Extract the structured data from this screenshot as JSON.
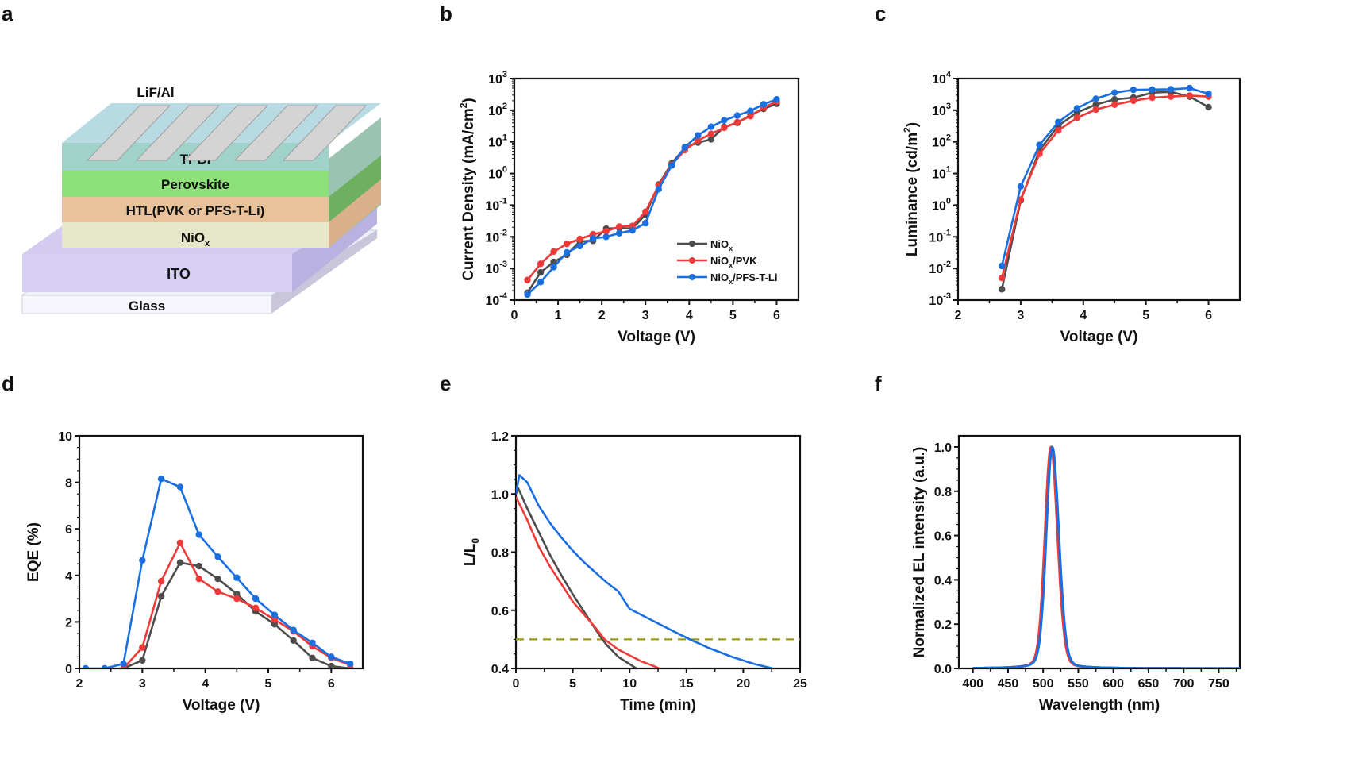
{
  "panel_letters": [
    "a",
    "b",
    "c",
    "d",
    "e",
    "f"
  ],
  "colors": {
    "NiOx": "#4d4d4d",
    "NiOx/PVK": "#f03a3a",
    "NiOx/PFS-T-Li": "#1a6fe0",
    "dashed": "#9a9a10"
  },
  "device_stack": {
    "electrode_label": "LiF/Al",
    "layers": [
      {
        "name": "TPBi",
        "color": "#9fd2c8"
      },
      {
        "name": "Perovskite",
        "color": "#8ee07a"
      },
      {
        "name": "HTL(PVK or PFS-T-Li)",
        "color": "#e8c29a"
      },
      {
        "name": "NiOx",
        "color": "#e6e6c8"
      },
      {
        "name": "ITO",
        "color": "#d8d0f2"
      },
      {
        "name": "Glass",
        "color": "#f4f4fb"
      }
    ]
  },
  "chart_data": [
    {
      "id": "b",
      "type": "line",
      "title": "",
      "xlabel": "Voltage (V)",
      "ylabel": "Current Density (mA/cm²)",
      "xlim": [
        0,
        6.5
      ],
      "ylim": [
        0.0001,
        1000
      ],
      "yscale": "log",
      "xticks": [
        0,
        1,
        2,
        3,
        4,
        5,
        6
      ],
      "yticks": [
        0.0001,
        0.001,
        0.01,
        0.1,
        1,
        10,
        100,
        1000
      ],
      "ytick_labels": [
        "10⁻⁴",
        "10⁻³",
        "10⁻²",
        "10⁻¹",
        "10⁰",
        "10¹",
        "10²",
        "10³"
      ],
      "legend_position": "bottom-right",
      "series": [
        {
          "name": "NiOx",
          "x": [
            0.3,
            0.6,
            0.9,
            1.2,
            1.5,
            1.8,
            2.1,
            2.4,
            2.7,
            3.0,
            3.3,
            3.6,
            3.9,
            4.2,
            4.5,
            4.8,
            5.1,
            5.4,
            5.7,
            6.0
          ],
          "y": [
            0.00017,
            0.00075,
            0.0016,
            0.0027,
            0.0072,
            0.0075,
            0.018,
            0.019,
            0.018,
            0.05,
            0.45,
            2.1,
            6.5,
            9.5,
            12,
            30,
            40,
            70,
            110,
            160
          ]
        },
        {
          "name": "NiOx/PVK",
          "x": [
            0.3,
            0.6,
            0.9,
            1.2,
            1.5,
            1.8,
            2.1,
            2.4,
            2.7,
            3.0,
            3.3,
            3.6,
            3.9,
            4.2,
            4.5,
            4.8,
            5.1,
            5.4,
            5.7,
            6.0
          ],
          "y": [
            0.00043,
            0.0014,
            0.0034,
            0.006,
            0.0085,
            0.012,
            0.015,
            0.021,
            0.022,
            0.062,
            0.42,
            1.9,
            5.5,
            11,
            18,
            28,
            42,
            65,
            120,
            190
          ]
        },
        {
          "name": "NiOx/PFS-T-Li",
          "x": [
            0.3,
            0.6,
            0.9,
            1.2,
            1.5,
            1.8,
            2.1,
            2.4,
            2.7,
            3.0,
            3.3,
            3.6,
            3.9,
            4.2,
            4.5,
            4.8,
            5.1,
            5.4,
            5.7,
            6.0
          ],
          "y": [
            0.00015,
            0.00037,
            0.0011,
            0.0032,
            0.0051,
            0.0088,
            0.01,
            0.013,
            0.016,
            0.027,
            0.32,
            1.8,
            6.8,
            16,
            30,
            48,
            68,
            95,
            155,
            220
          ]
        }
      ]
    },
    {
      "id": "c",
      "type": "line",
      "title": "",
      "xlabel": "Voltage (V)",
      "ylabel": "Luminance (cd/m²)",
      "xlim": [
        2,
        6.5
      ],
      "ylim": [
        0.001,
        10000
      ],
      "yscale": "log",
      "xticks": [
        2,
        3,
        4,
        5,
        6
      ],
      "yticks": [
        0.001,
        0.01,
        0.1,
        1,
        10,
        100,
        1000,
        10000
      ],
      "ytick_labels": [
        "10⁻³",
        "10⁻²",
        "10⁻¹",
        "10⁰",
        "10¹",
        "10²",
        "10³",
        "10⁴"
      ],
      "series": [
        {
          "name": "NiOx",
          "x": [
            2.7,
            3.0,
            3.3,
            3.6,
            3.9,
            4.2,
            4.5,
            4.8,
            5.1,
            5.4,
            5.7,
            6.0
          ],
          "y": [
            0.0022,
            1.4,
            55,
            320,
            850,
            1500,
            2200,
            2500,
            3600,
            3800,
            2700,
            1250
          ]
        },
        {
          "name": "NiOx/PVK",
          "x": [
            2.7,
            3.0,
            3.3,
            3.6,
            3.9,
            4.2,
            4.5,
            4.8,
            5.1,
            5.4,
            5.7,
            6.0
          ],
          "y": [
            0.005,
            1.5,
            42,
            230,
            580,
            1050,
            1500,
            2000,
            2500,
            2700,
            2900,
            2700
          ]
        },
        {
          "name": "NiOx/PFS-T-Li",
          "x": [
            2.7,
            3.0,
            3.3,
            3.6,
            3.9,
            4.2,
            4.5,
            4.8,
            5.1,
            5.4,
            5.7,
            6.0
          ],
          "y": [
            0.012,
            3.9,
            80,
            420,
            1150,
            2300,
            3600,
            4400,
            4500,
            4600,
            5000,
            3300
          ]
        }
      ]
    },
    {
      "id": "d",
      "type": "line",
      "title": "",
      "xlabel": "Voltage (V)",
      "ylabel": "EQE (%)",
      "xlim": [
        2,
        6.5
      ],
      "ylim": [
        0,
        10
      ],
      "xticks": [
        2,
        3,
        4,
        5,
        6
      ],
      "yticks": [
        0,
        2,
        4,
        6,
        8,
        10
      ],
      "series": [
        {
          "name": "NiOx",
          "x": [
            2.7,
            3.0,
            3.3,
            3.6,
            3.9,
            4.2,
            4.5,
            4.8,
            5.1,
            5.4,
            5.7,
            6.0,
            6.3
          ],
          "y": [
            0.0,
            0.35,
            3.1,
            4.55,
            4.4,
            3.85,
            3.2,
            2.45,
            1.9,
            1.2,
            0.45,
            0.1,
            0.0
          ]
        },
        {
          "name": "NiOx/PVK",
          "x": [
            2.7,
            3.0,
            3.3,
            3.6,
            3.9,
            4.2,
            4.5,
            4.8,
            5.1,
            5.4,
            5.7,
            6.0,
            6.3
          ],
          "y": [
            0.0,
            0.9,
            3.75,
            5.4,
            3.85,
            3.3,
            3.0,
            2.6,
            2.1,
            1.6,
            0.95,
            0.45,
            0.15
          ]
        },
        {
          "name": "NiOx/PFS-T-Li",
          "x": [
            2.1,
            2.4,
            2.7,
            3.0,
            3.3,
            3.6,
            3.9,
            4.2,
            4.5,
            4.8,
            5.1,
            5.4,
            5.7,
            6.0,
            6.3
          ],
          "y": [
            0.0,
            0.0,
            0.2,
            4.65,
            8.15,
            7.8,
            5.75,
            4.8,
            3.9,
            3.0,
            2.3,
            1.65,
            1.1,
            0.5,
            0.2
          ]
        }
      ]
    },
    {
      "id": "e",
      "type": "line",
      "title": "",
      "xlabel": "Time (min)",
      "ylabel": "L/L₀",
      "xlim": [
        0,
        25
      ],
      "ylim": [
        0.4,
        1.2
      ],
      "xticks": [
        0,
        5,
        10,
        15,
        20,
        25
      ],
      "yticks": [
        0.4,
        0.6,
        0.8,
        1.0,
        1.2
      ],
      "ytick_labels": [
        "0.4",
        "0.6",
        "0.8",
        "1.0",
        "1.2"
      ],
      "reference_line": {
        "y": 0.5,
        "style": "dashed"
      },
      "series": [
        {
          "name": "NiOx",
          "x": [
            0,
            0.2,
            1,
            2,
            3,
            4,
            5,
            6,
            7,
            7.6,
            8,
            9,
            10,
            10.6
          ],
          "y": [
            1.0,
            1.02,
            0.95,
            0.87,
            0.79,
            0.72,
            0.655,
            0.595,
            0.535,
            0.5,
            0.48,
            0.44,
            0.415,
            0.4
          ]
        },
        {
          "name": "NiOx/PVK",
          "x": [
            0,
            0.5,
            1,
            2,
            3,
            4,
            5,
            6,
            7,
            7.8,
            9,
            10,
            11,
            12,
            12.6
          ],
          "y": [
            0.99,
            0.95,
            0.91,
            0.82,
            0.75,
            0.69,
            0.63,
            0.585,
            0.54,
            0.5,
            0.465,
            0.445,
            0.425,
            0.41,
            0.4
          ]
        },
        {
          "name": "NiOx/PFS-T-Li",
          "x": [
            0,
            0.3,
            1,
            2,
            3,
            4,
            5,
            6,
            7,
            8,
            9,
            10,
            12,
            14,
            15.3,
            17,
            19,
            21,
            22.6
          ],
          "y": [
            1.0,
            1.065,
            1.04,
            0.96,
            0.9,
            0.85,
            0.805,
            0.765,
            0.73,
            0.695,
            0.665,
            0.605,
            0.565,
            0.525,
            0.5,
            0.47,
            0.44,
            0.415,
            0.4
          ]
        }
      ]
    },
    {
      "id": "f",
      "type": "line",
      "title": "",
      "xlabel": "Wavelength (nm)",
      "ylabel": "Normalized EL intensity (a.u.)",
      "xlim": [
        380,
        780
      ],
      "ylim": [
        0,
        1.05
      ],
      "xticks": [
        400,
        450,
        500,
        550,
        600,
        650,
        700,
        750
      ],
      "yticks": [
        0,
        0.2,
        0.4,
        0.6,
        0.8,
        1.0
      ],
      "ytick_labels": [
        "0.0",
        "0.2",
        "0.4",
        "0.6",
        "0.8",
        "1.0"
      ],
      "series": [
        {
          "name": "NiOx",
          "peak_nm": 512,
          "fwhm_nm": 20
        },
        {
          "name": "NiOx/PVK",
          "peak_nm": 511,
          "fwhm_nm": 20
        },
        {
          "name": "NiOx/PFS-T-Li",
          "peak_nm": 513,
          "fwhm_nm": 20
        }
      ]
    }
  ]
}
